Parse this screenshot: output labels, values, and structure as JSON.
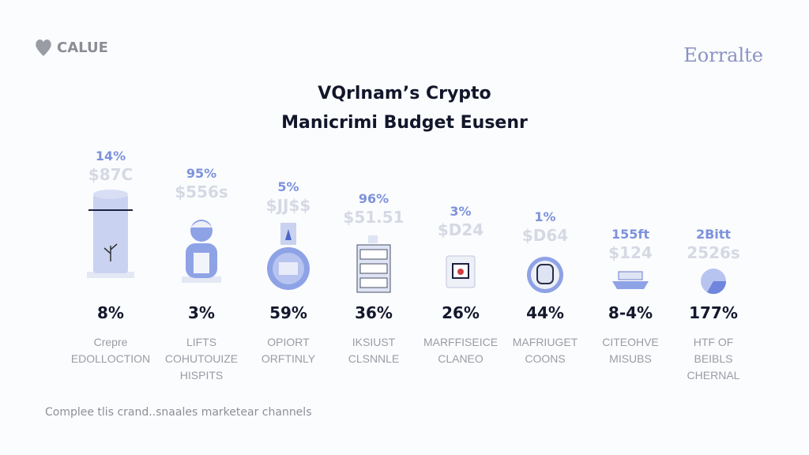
{
  "brand_left": {
    "name": "CALUE",
    "icon": "heart-icon"
  },
  "brand_right": {
    "name": "Eorralte"
  },
  "title": {
    "line1": "VQrlnam’s Crypto",
    "line2": "Manicrimi Budget Eusenr"
  },
  "colors": {
    "accent": "#7d92dc",
    "text": "#14182c",
    "muted": "#9a9ca4",
    "icon_fill": "#c9d2f0"
  },
  "columns": [
    {
      "top_pct": "14%",
      "amount": "$87C",
      "icon": "cylinder-plant-icon",
      "pct": "8%",
      "label": [
        "Crepre",
        "EDOLLOCTION"
      ]
    },
    {
      "top_pct": "95%",
      "amount": "$556s",
      "icon": "person-icon",
      "pct": "3%",
      "label": [
        "LIFTS",
        "COHUTOUIZE",
        "HISPITS"
      ]
    },
    {
      "top_pct": "5%",
      "amount": "$JJ$$",
      "icon": "globe-device-icon",
      "pct": "59%",
      "label": [
        "OPIORT",
        "ORFTINLY"
      ]
    },
    {
      "top_pct": "96%",
      "amount": "$51.51",
      "icon": "server-rack-icon",
      "pct": "36%",
      "label": [
        "IKSIUST",
        "CLSNNLE"
      ]
    },
    {
      "top_pct": "3%",
      "amount": "$D24",
      "icon": "document-box-icon",
      "pct": "26%",
      "label": [
        "MARFFISEICE",
        "CLANEO"
      ]
    },
    {
      "top_pct": "1%",
      "amount": "$D64",
      "icon": "face-avatar-icon",
      "pct": "44%",
      "label": [
        "MAFRIUGET",
        "COONS"
      ]
    },
    {
      "top_pct": "155ft",
      "amount": "$124",
      "icon": "ship-icon",
      "pct": "8-4%",
      "label": [
        "CITEOHVE",
        "MISUBS"
      ]
    },
    {
      "top_pct": "2Bitt",
      "amount": "2526s",
      "icon": "pie-chart-icon",
      "pct": "177%",
      "label": [
        "HTF OF",
        "BEIBLS",
        "CHERNAL"
      ]
    }
  ],
  "footer": "Complee tlis crand..snaales marketear channels"
}
